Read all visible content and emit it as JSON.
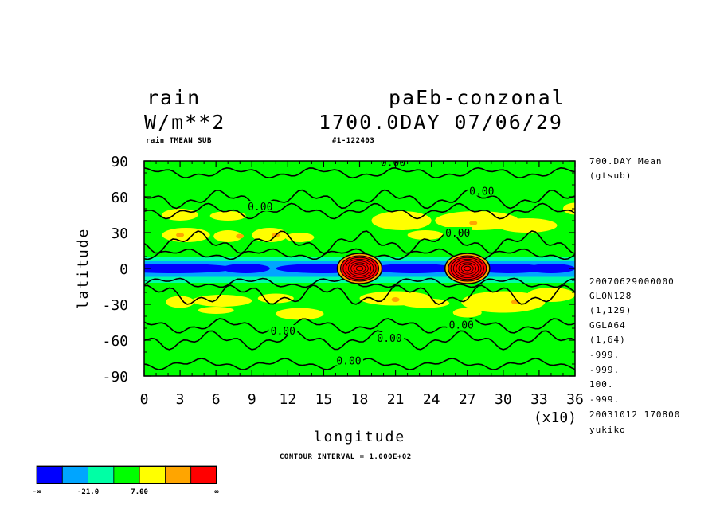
{
  "header": {
    "variable": "rain",
    "units": "W/m**2",
    "experiment": "paEb-conzonal",
    "time": "1700.0DAY 07/06/29",
    "subtitle_left": "rain TMEAN SUB",
    "subtitle_right": "#1-122403"
  },
  "side_info": {
    "lines_top": [
      "700.DAY Mean",
      "(gtsub)"
    ],
    "lines_bottom": [
      "20070629000000",
      "GLON128",
      "(1,129)",
      "GGLA64",
      "(1,64)",
      "-999.",
      "-999.",
      "100.",
      "-999.",
      "20031012 170800",
      "yukiko"
    ]
  },
  "footer": {
    "contour_interval": "CONTOUR INTERVAL = 1.000E+02"
  },
  "chart_data": {
    "type": "heatmap",
    "xlabel": "longitude",
    "ylabel": "latitude",
    "x_scale_note": "(x10)",
    "xlim": [
      0,
      36
    ],
    "ylim": [
      -90,
      90
    ],
    "x_ticks": [
      "0",
      "3",
      "6",
      "9",
      "12",
      "15",
      "18",
      "21",
      "24",
      "27",
      "30",
      "33",
      "36"
    ],
    "y_ticks": [
      "90",
      "60",
      "30",
      "0",
      "-30",
      "-60",
      "-90"
    ],
    "contour_labels": [
      {
        "text": "0.00",
        "lon": 20.8,
        "lat": 89
      },
      {
        "text": "0.00",
        "lon": 28.2,
        "lat": 65
      },
      {
        "text": "0.00",
        "lon": 9.7,
        "lat": 52
      },
      {
        "text": "0.00",
        "lon": 26.2,
        "lat": 30
      },
      {
        "text": "0.00",
        "lon": 11.6,
        "lat": -52
      },
      {
        "text": "0.00",
        "lon": 26.5,
        "lat": -47
      },
      {
        "text": "0.00",
        "lon": 20.5,
        "lat": -58
      },
      {
        "text": "0.00",
        "lon": 17.1,
        "lat": -77
      }
    ],
    "peaks": [
      {
        "lon": 18,
        "lat": 0
      },
      {
        "lon": 27,
        "lat": 0
      }
    ],
    "colorbar": {
      "colors": [
        "#0000ff",
        "#00a5ff",
        "#00ffa5",
        "#00ff00",
        "#ffff00",
        "#ffa500",
        "#ff0000"
      ],
      "labels": [
        "-∞",
        "-21.0",
        "7.00",
        "∞"
      ]
    }
  }
}
